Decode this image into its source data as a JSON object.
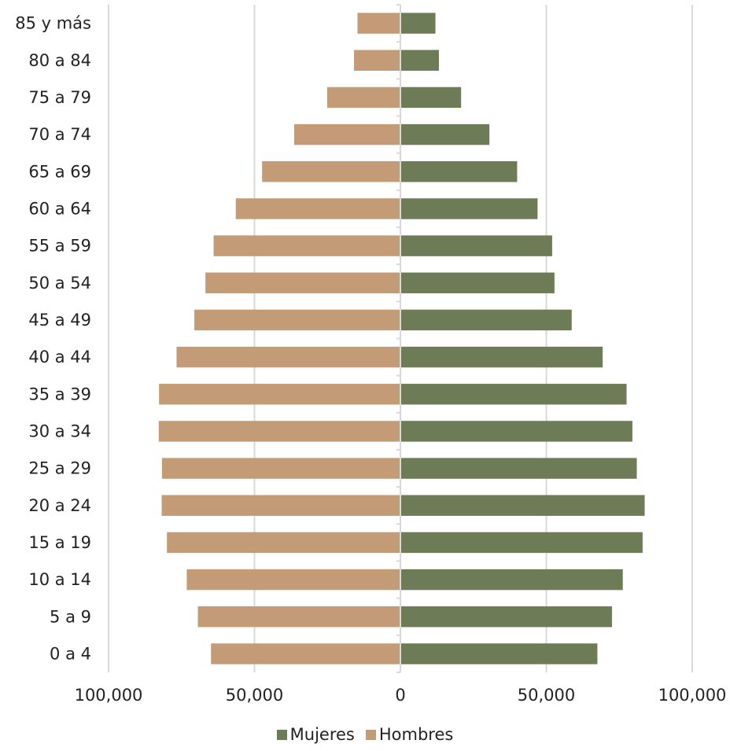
{
  "chart_data": {
    "type": "bar",
    "orientation": "horizontal",
    "title": "",
    "xlabel": "",
    "ylabel": "",
    "categories": [
      "0 a 4",
      "5 a 9",
      "10 a 14",
      "15 a 19",
      "20 a 24",
      "25 a 29",
      "30 a 34",
      "35 a 39",
      "40 a 44",
      "45 a 49",
      "50 a 54",
      "55 a 59",
      "60 a 64",
      "65 a 69",
      "70 a 74",
      "75 a 79",
      "80 a 84",
      "85 y más"
    ],
    "series": [
      {
        "name": "Mujeres",
        "color": "#6e7b57",
        "side": "right",
        "values": [
          67500,
          72500,
          76200,
          83000,
          83700,
          81000,
          79500,
          77500,
          69300,
          58700,
          52800,
          52000,
          47000,
          40000,
          30500,
          20800,
          13200,
          12000
        ]
      },
      {
        "name": "Hombres",
        "color": "#c39b76",
        "side": "left",
        "values": [
          64900,
          69400,
          73200,
          80000,
          81800,
          81700,
          82800,
          82700,
          76700,
          70600,
          66800,
          64000,
          56400,
          47400,
          36400,
          25100,
          15900,
          14700
        ]
      }
    ],
    "xlim": [
      -100000,
      100000
    ],
    "x_ticks": [
      -100000,
      -50000,
      0,
      50000,
      100000
    ],
    "x_tick_labels": [
      "100,000",
      "50,000",
      "0",
      "50,000",
      "100,000"
    ],
    "grid": "vertical",
    "legend_position": "bottom"
  },
  "legend": {
    "items": [
      {
        "label": "Mujeres",
        "color": "#6e7b57"
      },
      {
        "label": "Hombres",
        "color": "#c39b76"
      }
    ]
  }
}
